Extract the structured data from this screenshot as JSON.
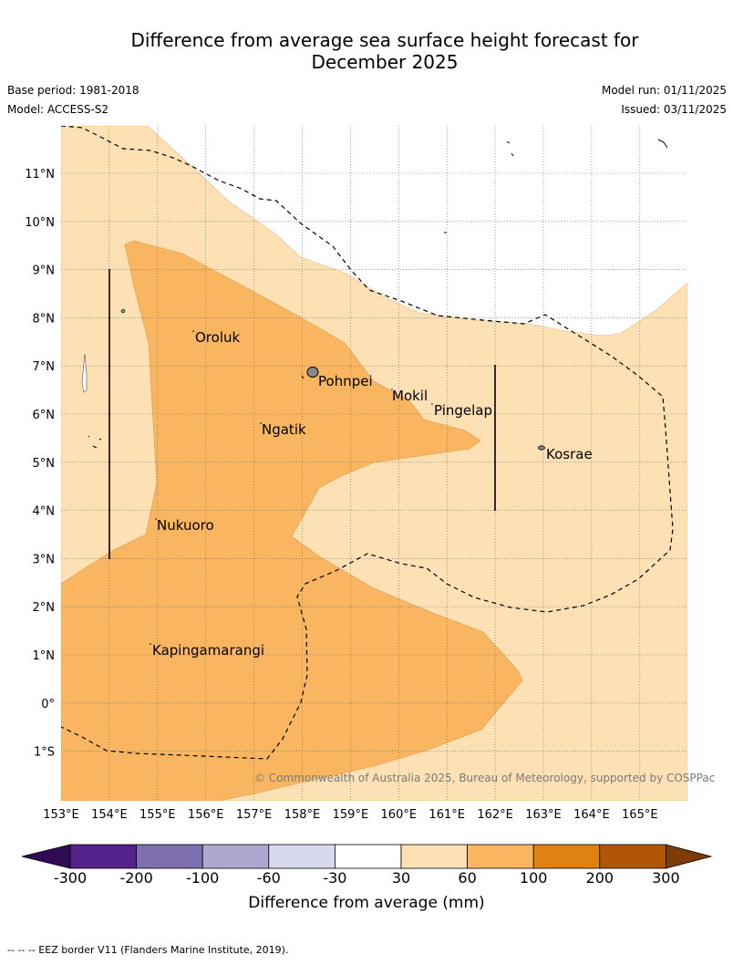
{
  "header": {
    "title_line1": "Difference from average sea surface height forecast for",
    "title_line2": "December 2025",
    "base_period": "Base period: 1981-2018",
    "model": "Model: ACCESS-S2",
    "model_run": "Model run: 01/11/2025",
    "issued": "Issued: 03/11/2025"
  },
  "map": {
    "lat_labels": [
      "11°N",
      "10°N",
      "9°N",
      "8°N",
      "7°N",
      "6°N",
      "5°N",
      "4°N",
      "3°N",
      "2°N",
      "1°N",
      "0°",
      "1°S"
    ],
    "lon_labels": [
      "153°E",
      "154°E",
      "155°E",
      "156°E",
      "157°E",
      "158°E",
      "159°E",
      "160°E",
      "161°E",
      "162°E",
      "163°E",
      "164°E",
      "165°E"
    ],
    "places": [
      "Oroluk",
      "Pohnpei",
      "Mokil",
      "Pingelap",
      "Ngatik",
      "Kosrae",
      "Nukuoro",
      "Kapingamarangi"
    ],
    "copyright": "© Commonwealth of Australia 2025, Bureau of Meteorology, supported by COSPPac"
  },
  "colorbar": {
    "ticks": [
      "-300",
      "-200",
      "-100",
      "-60",
      "-30",
      "30",
      "60",
      "100",
      "200",
      "300"
    ],
    "colors": [
      "#2e0b52",
      "#54228b",
      "#7e70ae",
      "#aea8d0",
      "#d9d9ee",
      "#ffffff",
      "#fde0b3",
      "#f9b55f",
      "#e08114",
      "#b15606",
      "#7f3b08"
    ],
    "label": "Difference from average (mm)"
  },
  "footer": {
    "legend": "--  --  -- EEZ border V11 (Flanders Marine Institute, 2019)."
  }
}
